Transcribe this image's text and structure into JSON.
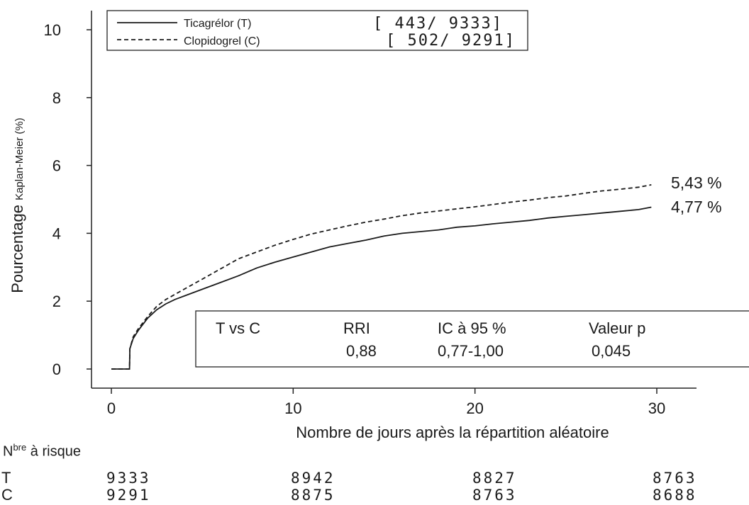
{
  "chart_data": {
    "type": "line",
    "ylabel_prefix": "Pourcentage ",
    "ylabel_main": "Kaplan-Meier",
    "ylabel_unit": " (%)",
    "xlabel": "Nombre de jours après la répartition aléatoire",
    "xlim": [
      0,
      30
    ],
    "ylim": [
      0,
      10
    ],
    "x_ticks": [
      0,
      10,
      20,
      30
    ],
    "y_ticks": [
      0,
      2,
      4,
      6,
      8,
      10
    ],
    "legend_placement": "top-left",
    "series": [
      {
        "name": "Ticagrélor (T)",
        "count": "[ 443/ 9333]",
        "style": "solid",
        "end_label": "4,77 %",
        "x": [
          0,
          1,
          1.02,
          1.2,
          1.5,
          2,
          2.5,
          3,
          3.5,
          4,
          5,
          6,
          7,
          8,
          9,
          10,
          11,
          12,
          13,
          14,
          15,
          16,
          17,
          18,
          19,
          20,
          21,
          22,
          23,
          24,
          25,
          26,
          27,
          28,
          29,
          29.7
        ],
        "y": [
          0,
          0,
          0.6,
          0.9,
          1.15,
          1.5,
          1.75,
          1.92,
          2.05,
          2.15,
          2.35,
          2.55,
          2.75,
          2.98,
          3.15,
          3.3,
          3.45,
          3.6,
          3.7,
          3.8,
          3.92,
          4.0,
          4.05,
          4.1,
          4.18,
          4.22,
          4.28,
          4.33,
          4.38,
          4.45,
          4.5,
          4.55,
          4.6,
          4.65,
          4.7,
          4.77
        ]
      },
      {
        "name": "Clopidogrel (C)",
        "count": "[ 502/ 9291]",
        "style": "dashed",
        "end_label": "5,43 %",
        "x": [
          0,
          1,
          1.02,
          1.2,
          1.5,
          2,
          2.5,
          3,
          3.5,
          4,
          5,
          6,
          7,
          8,
          9,
          10,
          11,
          12,
          13,
          14,
          15,
          16,
          17,
          18,
          19,
          20,
          21,
          22,
          23,
          24,
          25,
          26,
          27,
          28,
          29,
          29.7
        ],
        "y": [
          0,
          0,
          0.6,
          0.95,
          1.2,
          1.55,
          1.85,
          2.05,
          2.2,
          2.35,
          2.65,
          2.95,
          3.25,
          3.45,
          3.65,
          3.82,
          3.98,
          4.1,
          4.22,
          4.33,
          4.42,
          4.52,
          4.6,
          4.66,
          4.72,
          4.78,
          4.85,
          4.92,
          4.98,
          5.05,
          5.1,
          5.18,
          5.25,
          5.3,
          5.36,
          5.43
        ]
      }
    ],
    "stats": {
      "headers": [
        "T vs C",
        "RRI",
        "IC à 95 %",
        "Valeur p"
      ],
      "values": [
        "",
        "0,88",
        "0,77-1,00",
        "0,045"
      ]
    }
  },
  "risk_table": {
    "title_main": "N",
    "title_sup": "bre",
    "title_rest": " à risque",
    "rows": [
      {
        "label": "T",
        "values": [
          "9333",
          "8942",
          "8827",
          "8763"
        ]
      },
      {
        "label": "C",
        "values": [
          "9291",
          "8875",
          "8763",
          "8688"
        ]
      }
    ]
  }
}
